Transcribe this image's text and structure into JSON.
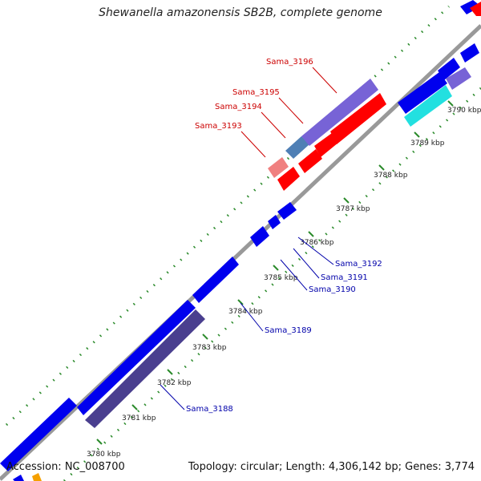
{
  "title": "Shewanella amazonensis SB2B, complete genome",
  "accession": "Accession: NC_008700",
  "summary": "Topology: circular; Length: 4,306,142 bp; Genes: 3,774",
  "colors": {
    "backbone": "#999999",
    "tick": "#2a8a2a",
    "gene_blue": "#0000ee",
    "gene_red": "#ff0000",
    "gene_purple": "#7763d6",
    "gene_dark_purple": "#4a3f8f",
    "gene_steel": "#4f7fb5",
    "gene_pink": "#f08080",
    "gene_cyan": "#22e0e0",
    "label_red": "#cc0000",
    "label_blue": "#0000aa"
  },
  "scale_labels": [
    "3780 kbp",
    "3781 kbp",
    "3782 kbp",
    "3783 kbp",
    "3784 kbp",
    "3785 kbp",
    "3786 kbp",
    "3787 kbp",
    "3788 kbp",
    "3789 kbp",
    "3790 kbp"
  ],
  "gene_labels": [
    {
      "text": "Sama_3196",
      "color": "label_red"
    },
    {
      "text": "Sama_3195",
      "color": "label_red"
    },
    {
      "text": "Sama_3194",
      "color": "label_red"
    },
    {
      "text": "Sama_3193",
      "color": "label_red"
    },
    {
      "text": "Sama_3192",
      "color": "label_blue"
    },
    {
      "text": "Sama_3191",
      "color": "label_blue"
    },
    {
      "text": "Sama_3190",
      "color": "label_blue"
    },
    {
      "text": "Sama_3189",
      "color": "label_blue"
    },
    {
      "text": "Sama_3188",
      "color": "label_blue"
    }
  ]
}
